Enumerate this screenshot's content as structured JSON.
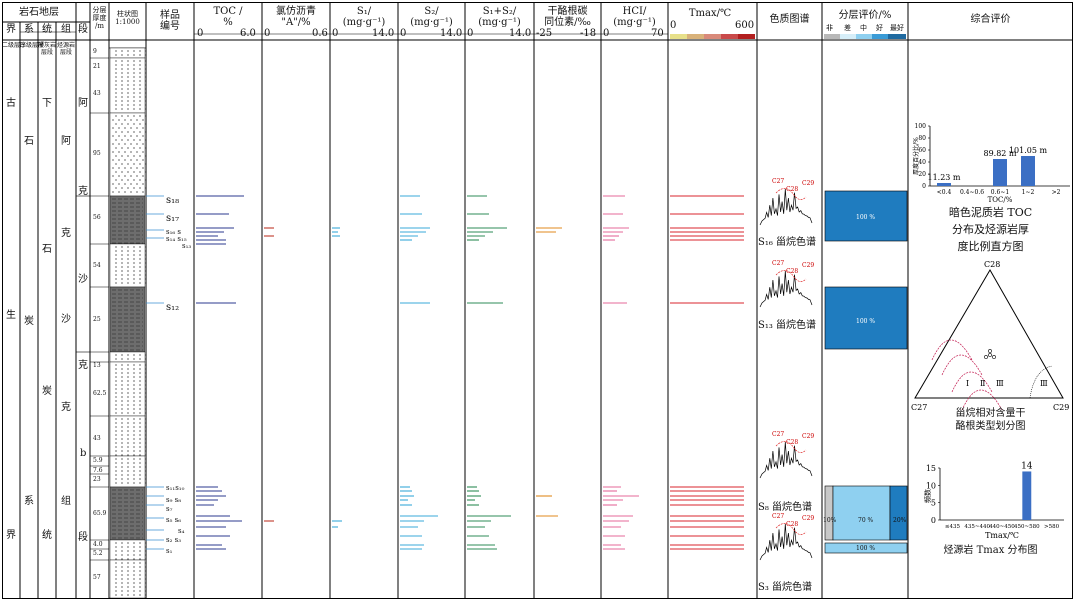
{
  "header": {
    "strat": "岩石地层",
    "jie": "界",
    "xi": "系",
    "tong": "统",
    "zu": "组",
    "duan": "段",
    "sub1": "二级层序",
    "sub2": "三级层序",
    "sub3": "凝灰岩层段",
    "sub4": "烃源岩层段",
    "thickness": "分层\n厚度\n/m",
    "column": "柱状图\n1:1000",
    "sample_no": "样品\n编号",
    "toc": {
      "label": "TOC /\n%",
      "min": "0",
      "max": "6.0"
    },
    "chloroform": {
      "label": "氯仿沥青\n\"A\"/%",
      "min": "0",
      "max": "0.6"
    },
    "s1": {
      "label": "S₁/\n(mg·g⁻¹)",
      "min": "0",
      "max": "14.0"
    },
    "s2": {
      "label": "S₂/\n(mg·g⁻¹)",
      "min": "0",
      "max": "14.0"
    },
    "s12": {
      "label": "S₁+S₂/\n(mg·g⁻¹)",
      "min": "0",
      "max": "14.0"
    },
    "hc": {
      "label": "干酪根碳\n同位素/‰",
      "min": "-25",
      "max": "-18"
    },
    "hci": {
      "label": "HCI/\n(mg·g⁻¹)",
      "min": "0",
      "max": "70"
    },
    "tmax": {
      "label": "Tmax/℃",
      "min": "0",
      "max": "600"
    },
    "chrom": "色质图谱",
    "eval": "分层评价/%",
    "eval_levels": [
      "非",
      "差",
      "中",
      "好",
      "最好"
    ],
    "comp": "综合评价"
  },
  "strat_cols": {
    "jie": "古\n生\n界",
    "jie_chars": [
      "古",
      "生",
      "界"
    ],
    "xi_chars": [
      "石",
      "炭",
      "系"
    ],
    "tong_chars": [
      "下",
      "石",
      "炭",
      "统"
    ],
    "zu_chars": [
      "阿",
      "克",
      "沙",
      "克",
      "组"
    ],
    "duan_chars": [
      "阿",
      "克",
      "沙",
      "克",
      "b",
      "段"
    ]
  },
  "thicknesses": [
    "9",
    "21",
    "43",
    "95",
    "56",
    "54",
    "25",
    "13",
    "62.5",
    "43",
    "5.9",
    "7.6",
    "23",
    "65.9",
    "4.0",
    "5.2",
    "57"
  ],
  "samples": [
    "s18",
    "s17",
    "s16",
    "s14",
    "s15",
    "s13",
    "s12",
    "s11",
    "s10",
    "s9",
    "s8",
    "s7",
    "s6",
    "s5",
    "s4",
    "s3",
    "s2",
    "s1"
  ],
  "sample_labels": {
    "s18": "s₁₈",
    "s17": "s₁₇",
    "s16": "s₁₆ s",
    "s14": "s₁₄ s₁₅",
    "s13": "s₁₃",
    "s12": "s₁₂",
    "s11": "s₁₁s₁₀",
    "s9": "s₉ s₈",
    "s7": "s₇",
    "s6": "s₅ s₆",
    "s4": "s₄",
    "s3": "s₂ s₃",
    "s1": "s₁"
  },
  "chromatograms": [
    {
      "label": "S₁₆ 甾烷色谱",
      "peaks": [
        "C27",
        "C28",
        "C29"
      ]
    },
    {
      "label": "S₁₃ 甾烷色谱",
      "peaks": [
        "C27",
        "C28",
        "C29"
      ]
    },
    {
      "label": "S₈ 甾烷色谱",
      "peaks": [
        "C27",
        "C28",
        "C29"
      ]
    },
    {
      "label": "S₃ 甾烷色谱",
      "peaks": [
        "C27",
        "C28",
        "C29"
      ]
    }
  ],
  "evaluation": {
    "box1": "100 %",
    "box2": "100 %",
    "box3_left": "10%",
    "box3_mid": "70 %",
    "box3_right": "20%",
    "box4": "100 %"
  },
  "chart_data": [
    {
      "type": "bar",
      "ylabel": "厚度百分比/%",
      "xlabel": "TOC/%",
      "categories": [
        "<0.4",
        "0.4~0.6",
        "0.6~1",
        "1~2",
        ">2"
      ],
      "values": [
        5,
        0,
        45,
        50,
        0
      ],
      "annotations": [
        "11.23 m",
        "",
        "89.82 m",
        "101.05 m",
        ""
      ],
      "yticks": [
        "0",
        "20",
        "40",
        "60",
        "80",
        "100"
      ],
      "ylim": [
        0,
        100
      ],
      "caption": [
        "暗色泥质岩 TOC",
        "分布及烃源岩厚",
        "度比例直方图"
      ]
    },
    {
      "type": "scatter",
      "title": "",
      "vertices": [
        "C27",
        "C28",
        "C29"
      ],
      "zones": [
        "Ⅰ",
        "Ⅱ",
        "Ⅲ"
      ],
      "caption": [
        "甾烷相对含量干",
        "酪根类型划分图"
      ]
    },
    {
      "type": "bar",
      "ylabel": "频数",
      "xlabel": "Tmax/℃",
      "categories": [
        "≤435",
        "435~440",
        "440~450",
        "450~580",
        ">580"
      ],
      "values": [
        0,
        0,
        0,
        14,
        0
      ],
      "annotations": [
        "",
        "",
        "",
        "14",
        ""
      ],
      "yticks": [
        "0",
        "5",
        "10",
        "15"
      ],
      "ylim": [
        0,
        15
      ],
      "caption": [
        "烃源岩 Tmax 分布图"
      ]
    }
  ],
  "colors": {
    "toc": "#2b3a8f",
    "chloroform": "#c0392b",
    "s1": "#3aa8d8",
    "s2": "#3aa8d8",
    "s12": "#2e8b57",
    "hc": "#e08a1e",
    "hci": "#e46a9a",
    "tmax": "#d9262c",
    "eval_dark": "#1f7cbf",
    "eval_light": "#8fd0f0",
    "bar": "#3b6fc4"
  }
}
